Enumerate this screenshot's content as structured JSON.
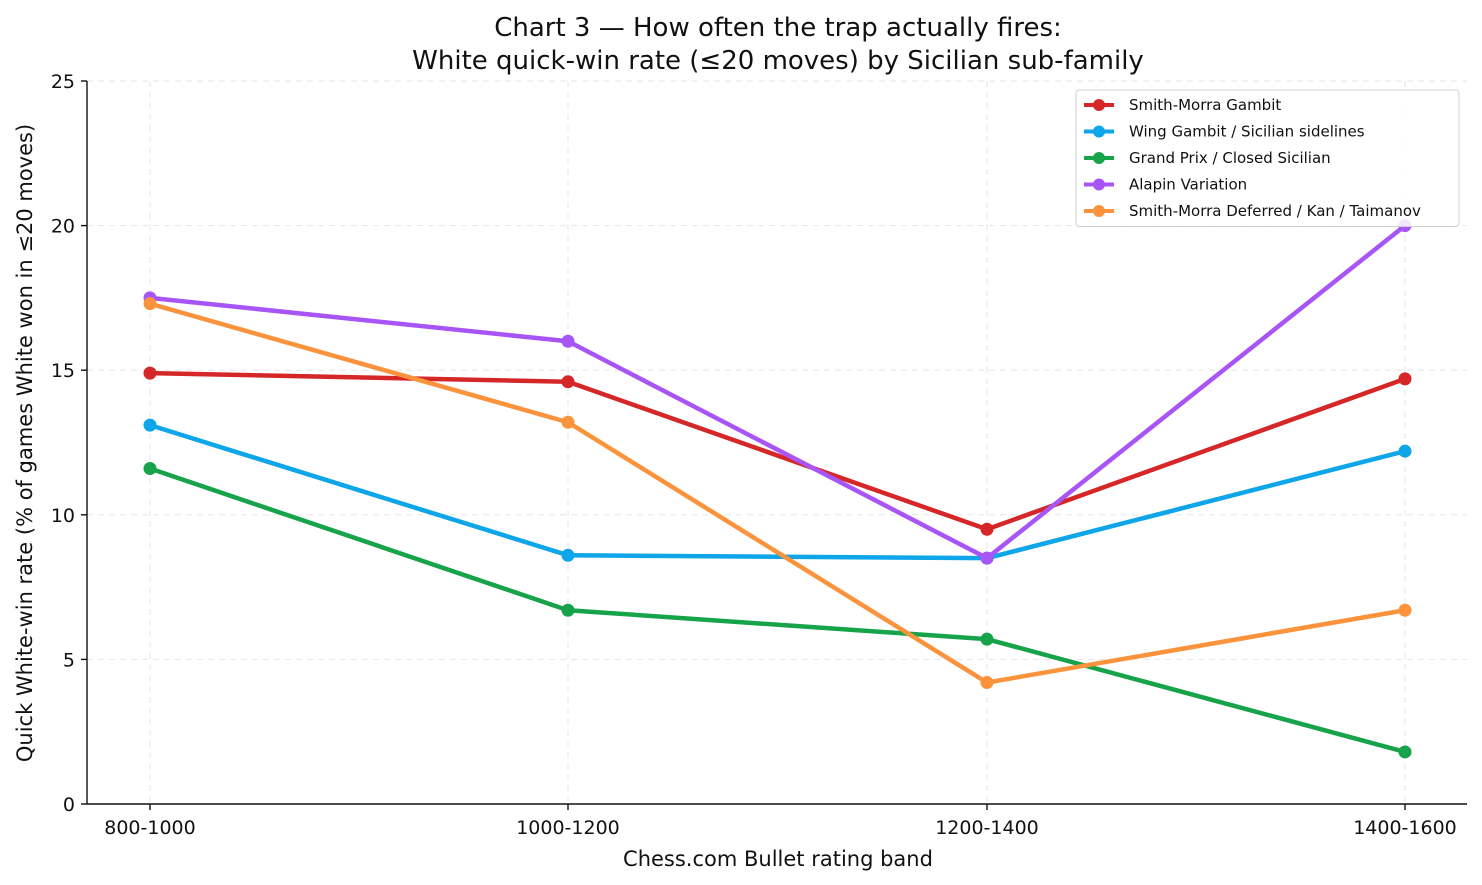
{
  "chart_data": {
    "type": "line",
    "title": "Chart 3 — How often the trap actually fires:",
    "subtitle": "White quick-win rate (≤20 moves) by Sicilian sub-family",
    "xlabel": "Chess.com Bullet rating band",
    "ylabel": "Quick White-win rate (% of games White won in ≤20 moves)",
    "categories": [
      "800-1000",
      "1000-1200",
      "1200-1400",
      "1400-1600"
    ],
    "ylim": [
      0,
      25
    ],
    "yticks": [
      0,
      5,
      10,
      15,
      20,
      25
    ],
    "grid": true,
    "legend_position": "top-right",
    "series": [
      {
        "name": "Smith-Morra Gambit",
        "color": "#d62728",
        "values": [
          14.9,
          14.6,
          9.5,
          14.7
        ]
      },
      {
        "name": "Wing Gambit / Sicilian sidelines",
        "color": "#0ea5e9",
        "values": [
          13.1,
          8.6,
          8.5,
          12.2
        ]
      },
      {
        "name": "Grand Prix / Closed Sicilian",
        "color": "#16a34a",
        "values": [
          11.6,
          6.7,
          5.7,
          1.8
        ]
      },
      {
        "name": "Alapin Variation",
        "color": "#a855f7",
        "values": [
          17.5,
          16.0,
          8.5,
          20.0
        ]
      },
      {
        "name": "Smith-Morra Deferred / Kan / Taimanov",
        "color": "#fb923c",
        "values": [
          17.3,
          13.2,
          4.2,
          6.7
        ]
      }
    ]
  }
}
